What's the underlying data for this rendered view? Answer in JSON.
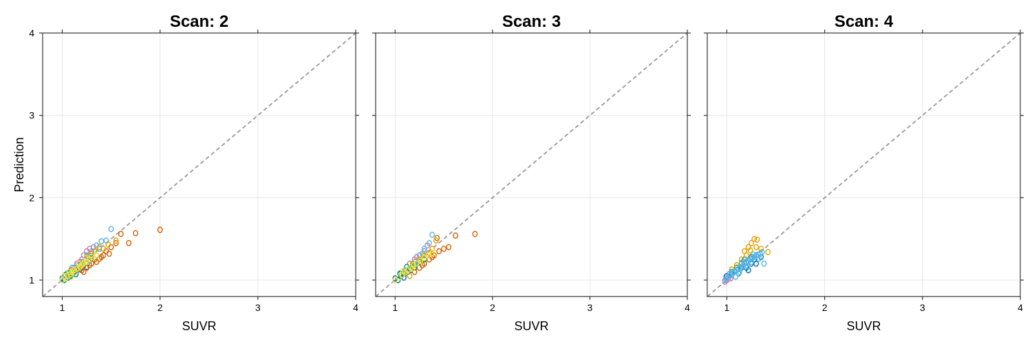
{
  "chart_data": [
    {
      "type": "scatter",
      "title": "Scan: 2",
      "xlabel": "SUVR",
      "ylabel": "Prediction",
      "xlim": [
        0.8,
        4
      ],
      "ylim": [
        0.8,
        4
      ],
      "xticks": [
        "1",
        "2",
        "3",
        "4"
      ],
      "yticks": [
        "1",
        "2",
        "3",
        "4"
      ],
      "grid": true,
      "reference_line": "y = x (dashed gray)",
      "series": [
        {
          "color": "#0072B2",
          "points": [
            [
              1.0,
              1.02
            ],
            [
              1.02,
              1.0
            ],
            [
              1.05,
              1.05
            ],
            [
              1.08,
              1.04
            ],
            [
              1.1,
              1.08
            ],
            [
              1.12,
              1.1
            ],
            [
              1.15,
              1.12
            ],
            [
              1.18,
              1.13
            ],
            [
              1.2,
              1.15
            ],
            [
              1.03,
              1.06
            ],
            [
              1.06,
              1.03
            ],
            [
              1.09,
              1.12
            ],
            [
              1.14,
              1.07
            ],
            [
              1.22,
              1.18
            ],
            [
              1.25,
              1.16
            ]
          ]
        },
        {
          "color": "#D55E00",
          "points": [
            [
              1.2,
              1.12
            ],
            [
              1.25,
              1.15
            ],
            [
              1.3,
              1.2
            ],
            [
              1.35,
              1.22
            ],
            [
              1.4,
              1.28
            ],
            [
              1.45,
              1.35
            ],
            [
              1.5,
              1.4
            ],
            [
              1.55,
              1.45
            ],
            [
              1.6,
              1.56
            ],
            [
              1.68,
              1.45
            ],
            [
              1.75,
              1.57
            ],
            [
              2.0,
              1.61
            ],
            [
              1.28,
              1.18
            ],
            [
              1.38,
              1.26
            ],
            [
              1.48,
              1.32
            ],
            [
              1.33,
              1.25
            ],
            [
              1.22,
              1.1
            ],
            [
              1.42,
              1.3
            ]
          ]
        },
        {
          "color": "#CC79A7",
          "points": [
            [
              1.15,
              1.2
            ],
            [
              1.2,
              1.25
            ],
            [
              1.22,
              1.3
            ],
            [
              1.25,
              1.35
            ],
            [
              1.28,
              1.38
            ],
            [
              1.3,
              1.32
            ],
            [
              1.32,
              1.4
            ],
            [
              1.18,
              1.22
            ],
            [
              1.26,
              1.28
            ],
            [
              1.12,
              1.15
            ]
          ]
        },
        {
          "color": "#009E73",
          "points": [
            [
              1.05,
              1.08
            ],
            [
              1.1,
              1.12
            ],
            [
              1.15,
              1.15
            ],
            [
              1.2,
              1.2
            ],
            [
              1.25,
              1.22
            ],
            [
              1.3,
              1.27
            ],
            [
              1.35,
              1.3
            ],
            [
              1.08,
              1.05
            ],
            [
              1.18,
              1.16
            ],
            [
              1.28,
              1.24
            ]
          ]
        },
        {
          "color": "#56B4E9",
          "points": [
            [
              1.1,
              1.15
            ],
            [
              1.2,
              1.22
            ],
            [
              1.3,
              1.35
            ],
            [
              1.35,
              1.42
            ],
            [
              1.4,
              1.47
            ],
            [
              1.45,
              1.48
            ],
            [
              1.5,
              1.62
            ],
            [
              1.25,
              1.3
            ],
            [
              1.15,
              1.18
            ],
            [
              1.38,
              1.38
            ]
          ]
        },
        {
          "color": "#E69F00",
          "points": [
            [
              1.1,
              1.12
            ],
            [
              1.2,
              1.2
            ],
            [
              1.28,
              1.3
            ],
            [
              1.33,
              1.35
            ],
            [
              1.38,
              1.4
            ],
            [
              1.42,
              1.38
            ],
            [
              1.55,
              1.48
            ],
            [
              1.24,
              1.26
            ],
            [
              1.16,
              1.14
            ],
            [
              1.47,
              1.43
            ]
          ]
        },
        {
          "color": "#F0E442",
          "points": [
            [
              1.0,
              1.0
            ],
            [
              1.03,
              1.02
            ],
            [
              1.05,
              1.05
            ],
            [
              1.08,
              1.07
            ],
            [
              1.1,
              1.1
            ],
            [
              1.12,
              1.12
            ],
            [
              1.15,
              1.14
            ],
            [
              1.18,
              1.16
            ],
            [
              1.2,
              1.18
            ],
            [
              1.22,
              1.2
            ],
            [
              1.25,
              1.22
            ],
            [
              1.28,
              1.25
            ],
            [
              1.3,
              1.28
            ],
            [
              1.35,
              1.3
            ],
            [
              1.07,
              1.1
            ],
            [
              1.13,
              1.09
            ],
            [
              1.17,
              1.2
            ],
            [
              1.24,
              1.27
            ],
            [
              1.02,
              1.05
            ],
            [
              1.09,
              1.04
            ]
          ]
        }
      ]
    },
    {
      "type": "scatter",
      "title": "Scan: 3",
      "xlabel": "SUVR",
      "ylabel": "",
      "xlim": [
        0.8,
        4
      ],
      "ylim": [
        0.8,
        4
      ],
      "xticks": [
        "1",
        "2",
        "3",
        "4"
      ],
      "yticks": [
        "",
        "",
        "",
        ""
      ],
      "grid": true,
      "reference_line": "y = x (dashed gray)",
      "series": [
        {
          "color": "#0072B2",
          "points": [
            [
              1.0,
              1.02
            ],
            [
              1.03,
              1.0
            ],
            [
              1.06,
              1.05
            ],
            [
              1.1,
              1.08
            ],
            [
              1.13,
              1.1
            ],
            [
              1.16,
              1.12
            ],
            [
              1.2,
              1.15
            ],
            [
              1.05,
              1.08
            ],
            [
              1.09,
              1.03
            ]
          ]
        },
        {
          "color": "#D55E00",
          "points": [
            [
              1.2,
              1.1
            ],
            [
              1.25,
              1.15
            ],
            [
              1.3,
              1.2
            ],
            [
              1.35,
              1.25
            ],
            [
              1.4,
              1.3
            ],
            [
              1.45,
              1.35
            ],
            [
              1.5,
              1.38
            ],
            [
              1.55,
              1.4
            ],
            [
              1.62,
              1.54
            ],
            [
              1.82,
              1.56
            ],
            [
              1.43,
              1.51
            ],
            [
              1.28,
              1.18
            ],
            [
              1.38,
              1.28
            ]
          ]
        },
        {
          "color": "#CC79A7",
          "points": [
            [
              1.15,
              1.2
            ],
            [
              1.2,
              1.25
            ],
            [
              1.25,
              1.3
            ],
            [
              1.3,
              1.35
            ],
            [
              1.33,
              1.42
            ],
            [
              1.22,
              1.28
            ],
            [
              1.18,
              1.18
            ]
          ]
        },
        {
          "color": "#009E73",
          "points": [
            [
              1.05,
              1.07
            ],
            [
              1.1,
              1.1
            ],
            [
              1.15,
              1.14
            ],
            [
              1.2,
              1.18
            ],
            [
              1.25,
              1.22
            ],
            [
              1.3,
              1.25
            ],
            [
              1.12,
              1.16
            ]
          ]
        },
        {
          "color": "#56B4E9",
          "points": [
            [
              1.1,
              1.12
            ],
            [
              1.2,
              1.22
            ],
            [
              1.25,
              1.3
            ],
            [
              1.3,
              1.38
            ],
            [
              1.35,
              1.45
            ],
            [
              1.38,
              1.55
            ],
            [
              1.28,
              1.32
            ]
          ]
        },
        {
          "color": "#E69F00",
          "points": [
            [
              1.1,
              1.1
            ],
            [
              1.18,
              1.2
            ],
            [
              1.25,
              1.25
            ],
            [
              1.3,
              1.3
            ],
            [
              1.38,
              1.38
            ],
            [
              1.42,
              1.48
            ],
            [
              1.35,
              1.33
            ],
            [
              1.15,
              1.05
            ]
          ]
        },
        {
          "color": "#F0E442",
          "points": [
            [
              1.0,
              1.0
            ],
            [
              1.04,
              1.03
            ],
            [
              1.07,
              1.06
            ],
            [
              1.1,
              1.09
            ],
            [
              1.13,
              1.12
            ],
            [
              1.16,
              1.15
            ],
            [
              1.19,
              1.18
            ],
            [
              1.22,
              1.2
            ],
            [
              1.26,
              1.23
            ],
            [
              1.3,
              1.27
            ],
            [
              1.34,
              1.3
            ],
            [
              1.38,
              1.33
            ],
            [
              1.08,
              1.11
            ],
            [
              1.18,
              1.14
            ]
          ]
        }
      ]
    },
    {
      "type": "scatter",
      "title": "Scan: 4",
      "xlabel": "SUVR",
      "ylabel": "",
      "xlim": [
        0.8,
        4
      ],
      "ylim": [
        0.8,
        4
      ],
      "xticks": [
        "1",
        "2",
        "3",
        "4"
      ],
      "yticks": [
        "",
        "",
        "",
        ""
      ],
      "grid": true,
      "reference_line": "y = x (dashed gray)",
      "series": [
        {
          "color": "#CC79A7",
          "points": [
            [
              0.98,
              0.98
            ],
            [
              1.0,
              1.0
            ],
            [
              1.02,
              1.03
            ],
            [
              1.04,
              1.02
            ],
            [
              0.99,
              1.04
            ]
          ]
        },
        {
          "color": "#0072B2",
          "points": [
            [
              1.0,
              1.05
            ],
            [
              1.05,
              1.08
            ],
            [
              1.1,
              1.12
            ],
            [
              1.15,
              1.15
            ],
            [
              1.2,
              1.15
            ],
            [
              1.25,
              1.2
            ],
            [
              1.3,
              1.2
            ],
            [
              1.28,
              1.25
            ],
            [
              1.22,
              1.12
            ],
            [
              1.35,
              1.28
            ]
          ]
        },
        {
          "color": "#009E73",
          "points": [
            [
              1.05,
              1.1
            ],
            [
              1.1,
              1.15
            ],
            [
              1.15,
              1.2
            ],
            [
              1.2,
              1.22
            ],
            [
              1.25,
              1.28
            ],
            [
              1.3,
              1.3
            ],
            [
              1.18,
              1.25
            ],
            [
              1.12,
              1.08
            ]
          ]
        },
        {
          "color": "#E69F00",
          "points": [
            [
              1.05,
              1.13
            ],
            [
              1.1,
              1.18
            ],
            [
              1.15,
              1.25
            ],
            [
              1.2,
              1.3
            ],
            [
              1.22,
              1.4
            ],
            [
              1.25,
              1.45
            ],
            [
              1.28,
              1.5
            ],
            [
              1.31,
              1.49
            ],
            [
              1.3,
              1.4
            ],
            [
              1.35,
              1.38
            ],
            [
              1.42,
              1.34
            ],
            [
              1.24,
              1.36
            ],
            [
              1.18,
              1.35
            ]
          ]
        },
        {
          "color": "#56B4E9",
          "points": [
            [
              0.98,
              1.0
            ],
            [
              1.0,
              1.02
            ],
            [
              1.02,
              1.05
            ],
            [
              1.04,
              1.06
            ],
            [
              1.06,
              1.08
            ],
            [
              1.08,
              1.1
            ],
            [
              1.1,
              1.12
            ],
            [
              1.12,
              1.14
            ],
            [
              1.14,
              1.15
            ],
            [
              1.16,
              1.17
            ],
            [
              1.18,
              1.2
            ],
            [
              1.2,
              1.21
            ],
            [
              1.22,
              1.23
            ],
            [
              1.24,
              1.25
            ],
            [
              1.26,
              1.27
            ],
            [
              1.28,
              1.28
            ],
            [
              1.3,
              1.3
            ],
            [
              1.32,
              1.31
            ],
            [
              1.34,
              1.32
            ],
            [
              1.36,
              1.34
            ],
            [
              1.03,
              1.08
            ],
            [
              1.09,
              1.04
            ],
            [
              1.15,
              1.21
            ],
            [
              1.21,
              1.17
            ],
            [
              1.27,
              1.31
            ],
            [
              1.33,
              1.26
            ],
            [
              1.38,
              1.2
            ],
            [
              1.13,
              1.1
            ],
            [
              1.19,
              1.25
            ],
            [
              1.25,
              1.22
            ]
          ]
        }
      ]
    }
  ]
}
